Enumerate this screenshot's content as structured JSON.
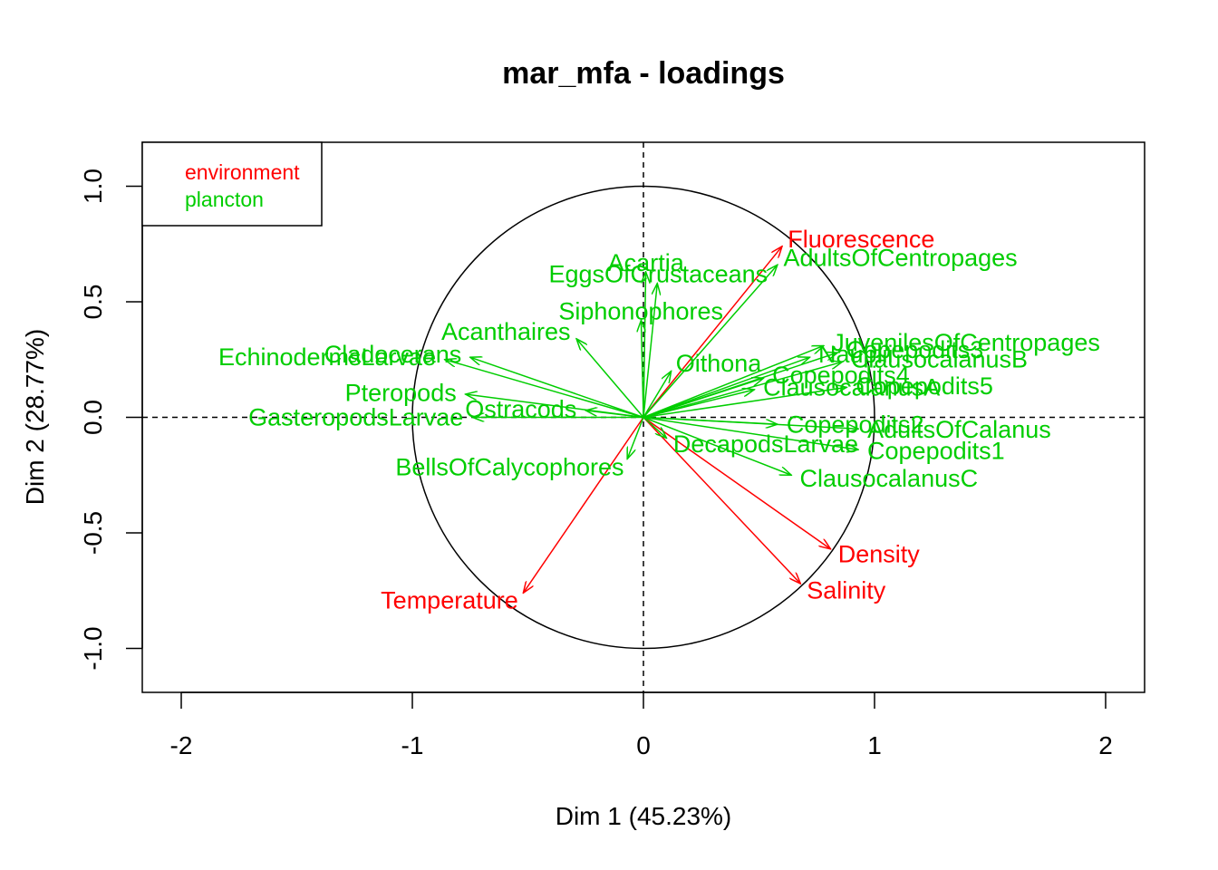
{
  "chart_data": {
    "type": "scatter",
    "title": "mar_mfa - loadings",
    "xlabel": "Dim 1 (45.23%)",
    "ylabel": "Dim 2 (28.77%)",
    "xlim": [
      -2.2,
      2.2
    ],
    "ylim": [
      -1.2,
      1.2
    ],
    "x_ticks": [
      "-2",
      "-1",
      "0",
      "1",
      "2"
    ],
    "y_ticks": [
      "-1.0",
      "-0.5",
      "0.0",
      "0.5",
      "1.0"
    ],
    "x_tick_values": [
      -2,
      -1,
      0,
      1,
      2
    ],
    "y_tick_values": [
      -1,
      -0.5,
      0,
      0.5,
      1
    ],
    "unit_circle": true,
    "reference_lines": "dashed at x=0 and y=0",
    "legend": {
      "placement": "top-left",
      "entries": [
        {
          "label": "environment",
          "color": "#ff0000"
        },
        {
          "label": "plancton",
          "color": "#00cd00"
        }
      ]
    },
    "series": [
      {
        "name": "environment",
        "color": "#ff0000",
        "points": [
          {
            "label": "Fluorescence",
            "x": 0.6,
            "y": 0.74
          },
          {
            "label": "Density",
            "x": 0.81,
            "y": -0.57
          },
          {
            "label": "Salinity",
            "x": 0.68,
            "y": -0.72
          },
          {
            "label": "Temperature",
            "x": -0.52,
            "y": -0.76
          }
        ]
      },
      {
        "name": "plancton",
        "color": "#00cd00",
        "points": [
          {
            "label": "Acartia",
            "x": 0.01,
            "y": 0.63
          },
          {
            "label": "AdultsOfCentropages",
            "x": 0.58,
            "y": 0.66
          },
          {
            "label": "EggsOfCrustaceans",
            "x": 0.06,
            "y": 0.58
          },
          {
            "label": "Siphonophores",
            "x": -0.01,
            "y": 0.42
          },
          {
            "label": "JuvenilesOfCentropages",
            "x": 0.78,
            "y": 0.31
          },
          {
            "label": "Acanthaires",
            "x": -0.29,
            "y": 0.34
          },
          {
            "label": "Oithona",
            "x": 0.12,
            "y": 0.2
          },
          {
            "label": "Nauplii",
            "x": 0.72,
            "y": 0.26
          },
          {
            "label": "Copepodits3",
            "x": 0.84,
            "y": 0.28
          },
          {
            "label": "EchinodermsLarvae",
            "x": -0.86,
            "y": 0.25
          },
          {
            "label": "Cladocerans",
            "x": -0.75,
            "y": 0.26
          },
          {
            "label": "Copepodits4",
            "x": 0.52,
            "y": 0.17
          },
          {
            "label": "ClausocalanusB",
            "x": 0.86,
            "y": 0.24
          },
          {
            "label": "ClausocalanusA",
            "x": 0.48,
            "y": 0.12
          },
          {
            "label": "Pteropods",
            "x": -0.77,
            "y": 0.1
          },
          {
            "label": "Copepodits5",
            "x": 0.88,
            "y": 0.13
          },
          {
            "label": "Ostracods",
            "x": -0.25,
            "y": 0.03
          },
          {
            "label": "Copepodits2",
            "x": 0.58,
            "y": -0.03
          },
          {
            "label": "AdultsOfCalanus",
            "x": 0.93,
            "y": -0.05
          },
          {
            "label": "GasteropodsLarvae",
            "x": -0.74,
            "y": 0.0
          },
          {
            "label": "DecapodsLarvae",
            "x": 0.1,
            "y": -0.09
          },
          {
            "label": "Copepodits1",
            "x": 0.93,
            "y": -0.14
          },
          {
            "label": "BellsOfCalycophores",
            "x": -0.07,
            "y": -0.18
          },
          {
            "label": "ClausocalanusC",
            "x": 0.64,
            "y": -0.25
          }
        ]
      }
    ]
  }
}
